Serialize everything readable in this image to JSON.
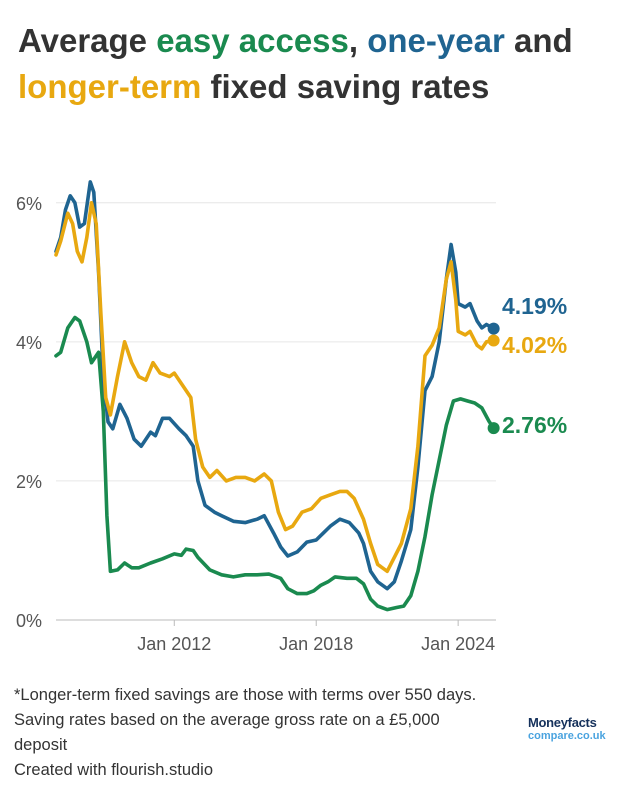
{
  "title": {
    "part1": "Average ",
    "easy": "easy access",
    "part2": ", ",
    "oneyear": "one-year",
    "part3": " and ",
    "longer": "longer-term",
    "part4": " fixed saving rates"
  },
  "colors": {
    "easy_access": "#1a8a4f",
    "one_year": "#1f6491",
    "longer_term": "#e8a810",
    "grid": "#e6e6e6",
    "axis_text": "#555555"
  },
  "chart_data": {
    "type": "line",
    "title": "Average easy access, one-year and longer-term fixed saving rates",
    "xlabel": "",
    "ylabel": "",
    "xlim": [
      2007.0,
      2025.6
    ],
    "ylim": [
      0,
      6.5
    ],
    "x_ticks": [
      {
        "value": 2012,
        "label": "Jan 2012"
      },
      {
        "value": 2018,
        "label": "Jan 2018"
      },
      {
        "value": 2024,
        "label": "Jan 2024"
      }
    ],
    "y_ticks": [
      {
        "value": 0,
        "label": "0%"
      },
      {
        "value": 2,
        "label": "2%"
      },
      {
        "value": 4,
        "label": "4%"
      },
      {
        "value": 6,
        "label": "6%"
      }
    ],
    "grid": true,
    "series": [
      {
        "name": "Easy access",
        "color": "#1a8a4f",
        "end_label": "2.76%",
        "points": [
          [
            2007.0,
            3.8
          ],
          [
            2007.2,
            3.85
          ],
          [
            2007.5,
            4.2
          ],
          [
            2007.8,
            4.35
          ],
          [
            2008.0,
            4.3
          ],
          [
            2008.3,
            4.0
          ],
          [
            2008.5,
            3.7
          ],
          [
            2008.8,
            3.85
          ],
          [
            2009.0,
            3.0
          ],
          [
            2009.15,
            1.5
          ],
          [
            2009.3,
            0.7
          ],
          [
            2009.6,
            0.72
          ],
          [
            2009.9,
            0.82
          ],
          [
            2010.2,
            0.75
          ],
          [
            2010.5,
            0.75
          ],
          [
            2011.0,
            0.82
          ],
          [
            2011.5,
            0.88
          ],
          [
            2012.0,
            0.95
          ],
          [
            2012.3,
            0.93
          ],
          [
            2012.5,
            1.02
          ],
          [
            2012.8,
            1.0
          ],
          [
            2013.0,
            0.9
          ],
          [
            2013.5,
            0.72
          ],
          [
            2014.0,
            0.65
          ],
          [
            2014.5,
            0.62
          ],
          [
            2015.0,
            0.65
          ],
          [
            2015.5,
            0.65
          ],
          [
            2016.0,
            0.66
          ],
          [
            2016.5,
            0.6
          ],
          [
            2016.8,
            0.45
          ],
          [
            2017.2,
            0.38
          ],
          [
            2017.6,
            0.38
          ],
          [
            2017.9,
            0.42
          ],
          [
            2018.2,
            0.5
          ],
          [
            2018.5,
            0.55
          ],
          [
            2018.8,
            0.62
          ],
          [
            2019.3,
            0.6
          ],
          [
            2019.7,
            0.6
          ],
          [
            2020.0,
            0.52
          ],
          [
            2020.3,
            0.3
          ],
          [
            2020.6,
            0.2
          ],
          [
            2021.0,
            0.15
          ],
          [
            2021.4,
            0.18
          ],
          [
            2021.7,
            0.2
          ],
          [
            2022.0,
            0.35
          ],
          [
            2022.3,
            0.7
          ],
          [
            2022.6,
            1.2
          ],
          [
            2022.9,
            1.8
          ],
          [
            2023.2,
            2.3
          ],
          [
            2023.5,
            2.8
          ],
          [
            2023.8,
            3.15
          ],
          [
            2024.1,
            3.18
          ],
          [
            2024.4,
            3.15
          ],
          [
            2024.7,
            3.12
          ],
          [
            2025.0,
            3.05
          ],
          [
            2025.3,
            2.86
          ],
          [
            2025.5,
            2.76
          ]
        ]
      },
      {
        "name": "One-year fixed",
        "color": "#1f6491",
        "end_label": "4.19%",
        "points": [
          [
            2007.0,
            5.3
          ],
          [
            2007.2,
            5.5
          ],
          [
            2007.4,
            5.9
          ],
          [
            2007.6,
            6.1
          ],
          [
            2007.8,
            6.0
          ],
          [
            2008.0,
            5.65
          ],
          [
            2008.2,
            5.7
          ],
          [
            2008.45,
            6.3
          ],
          [
            2008.6,
            6.15
          ],
          [
            2008.8,
            5.0
          ],
          [
            2009.0,
            3.5
          ],
          [
            2009.2,
            2.85
          ],
          [
            2009.4,
            2.75
          ],
          [
            2009.7,
            3.1
          ],
          [
            2010.0,
            2.9
          ],
          [
            2010.3,
            2.6
          ],
          [
            2010.6,
            2.5
          ],
          [
            2011.0,
            2.7
          ],
          [
            2011.2,
            2.65
          ],
          [
            2011.5,
            2.9
          ],
          [
            2011.8,
            2.9
          ],
          [
            2012.2,
            2.75
          ],
          [
            2012.5,
            2.65
          ],
          [
            2012.8,
            2.5
          ],
          [
            2013.0,
            2.0
          ],
          [
            2013.3,
            1.65
          ],
          [
            2013.7,
            1.55
          ],
          [
            2014.0,
            1.5
          ],
          [
            2014.5,
            1.42
          ],
          [
            2015.0,
            1.4
          ],
          [
            2015.5,
            1.45
          ],
          [
            2015.8,
            1.5
          ],
          [
            2016.2,
            1.25
          ],
          [
            2016.5,
            1.05
          ],
          [
            2016.8,
            0.92
          ],
          [
            2017.2,
            0.98
          ],
          [
            2017.6,
            1.12
          ],
          [
            2018.0,
            1.15
          ],
          [
            2018.3,
            1.25
          ],
          [
            2018.6,
            1.35
          ],
          [
            2019.0,
            1.45
          ],
          [
            2019.4,
            1.4
          ],
          [
            2019.8,
            1.25
          ],
          [
            2020.0,
            1.1
          ],
          [
            2020.3,
            0.7
          ],
          [
            2020.6,
            0.55
          ],
          [
            2021.0,
            0.45
          ],
          [
            2021.3,
            0.55
          ],
          [
            2021.6,
            0.85
          ],
          [
            2022.0,
            1.3
          ],
          [
            2022.3,
            2.2
          ],
          [
            2022.6,
            3.3
          ],
          [
            2022.9,
            3.5
          ],
          [
            2023.2,
            4.0
          ],
          [
            2023.5,
            4.9
          ],
          [
            2023.7,
            5.4
          ],
          [
            2023.9,
            5.0
          ],
          [
            2024.0,
            4.55
          ],
          [
            2024.3,
            4.5
          ],
          [
            2024.5,
            4.55
          ],
          [
            2024.8,
            4.3
          ],
          [
            2025.0,
            4.2
          ],
          [
            2025.2,
            4.25
          ],
          [
            2025.5,
            4.19
          ]
        ]
      },
      {
        "name": "Longer-term fixed",
        "color": "#e8a810",
        "end_label": "4.02%",
        "points": [
          [
            2007.0,
            5.25
          ],
          [
            2007.2,
            5.45
          ],
          [
            2007.5,
            5.85
          ],
          [
            2007.7,
            5.7
          ],
          [
            2007.9,
            5.3
          ],
          [
            2008.1,
            5.15
          ],
          [
            2008.3,
            5.5
          ],
          [
            2008.5,
            6.0
          ],
          [
            2008.7,
            5.7
          ],
          [
            2008.9,
            4.4
          ],
          [
            2009.1,
            3.2
          ],
          [
            2009.3,
            2.95
          ],
          [
            2009.6,
            3.5
          ],
          [
            2009.9,
            4.0
          ],
          [
            2010.2,
            3.7
          ],
          [
            2010.5,
            3.5
          ],
          [
            2010.8,
            3.45
          ],
          [
            2011.1,
            3.7
          ],
          [
            2011.4,
            3.55
          ],
          [
            2011.8,
            3.5
          ],
          [
            2012.0,
            3.55
          ],
          [
            2012.4,
            3.35
          ],
          [
            2012.7,
            3.2
          ],
          [
            2012.9,
            2.6
          ],
          [
            2013.2,
            2.2
          ],
          [
            2013.5,
            2.05
          ],
          [
            2013.8,
            2.15
          ],
          [
            2014.2,
            2.0
          ],
          [
            2014.6,
            2.05
          ],
          [
            2015.0,
            2.05
          ],
          [
            2015.4,
            2.0
          ],
          [
            2015.8,
            2.1
          ],
          [
            2016.1,
            2.0
          ],
          [
            2016.4,
            1.55
          ],
          [
            2016.7,
            1.3
          ],
          [
            2017.0,
            1.35
          ],
          [
            2017.4,
            1.55
          ],
          [
            2017.8,
            1.6
          ],
          [
            2018.2,
            1.75
          ],
          [
            2018.6,
            1.8
          ],
          [
            2019.0,
            1.85
          ],
          [
            2019.3,
            1.85
          ],
          [
            2019.6,
            1.75
          ],
          [
            2020.0,
            1.45
          ],
          [
            2020.3,
            1.1
          ],
          [
            2020.6,
            0.8
          ],
          [
            2021.0,
            0.7
          ],
          [
            2021.3,
            0.9
          ],
          [
            2021.6,
            1.1
          ],
          [
            2022.0,
            1.6
          ],
          [
            2022.3,
            2.5
          ],
          [
            2022.6,
            3.8
          ],
          [
            2022.9,
            3.95
          ],
          [
            2023.2,
            4.2
          ],
          [
            2023.5,
            4.9
          ],
          [
            2023.7,
            5.15
          ],
          [
            2023.9,
            4.6
          ],
          [
            2024.0,
            4.15
          ],
          [
            2024.3,
            4.1
          ],
          [
            2024.5,
            4.15
          ],
          [
            2024.8,
            3.95
          ],
          [
            2025.0,
            3.9
          ],
          [
            2025.2,
            4.0
          ],
          [
            2025.5,
            4.02
          ]
        ]
      }
    ]
  },
  "footer": {
    "note": "*Longer-term fixed savings are those with terms over 550 days.",
    "basis": "Saving rates based on the average gross rate on a £5,000 deposit",
    "credit": "Created with flourish.studio"
  },
  "logo": {
    "top": "Moneyfacts",
    "bottom": "compare.co.uk"
  }
}
